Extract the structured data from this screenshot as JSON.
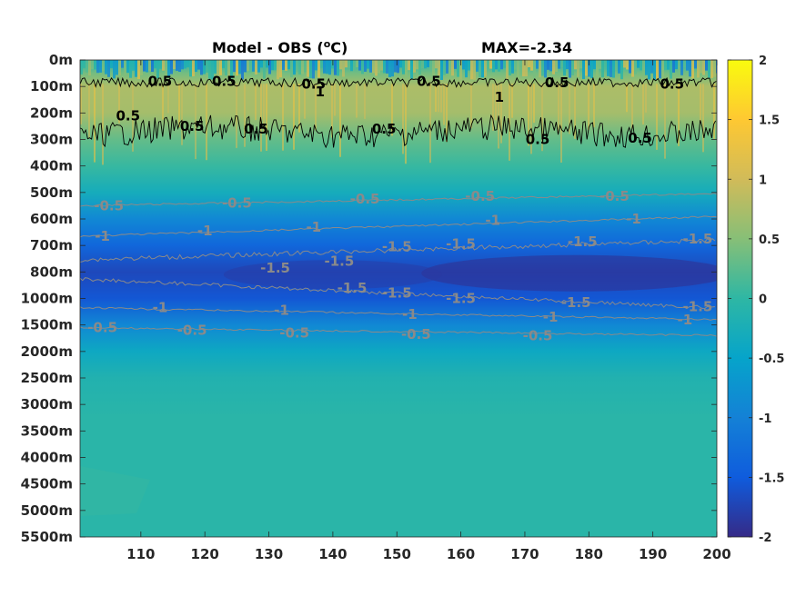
{
  "chart_data": {
    "type": "heatmap",
    "title": "Model - OBS (",
    "title_unit_sup": "o",
    "title_unit_suffix": "C)",
    "max_label": "MAX=-2.34",
    "x_ticks": [
      110,
      120,
      130,
      140,
      150,
      160,
      170,
      180,
      190,
      200
    ],
    "x_range": [
      100.5,
      200
    ],
    "depth_levels": [
      "0m",
      "100m",
      "200m",
      "300m",
      "400m",
      "500m",
      "600m",
      "700m",
      "800m",
      "1000m",
      "1500m",
      "2000m",
      "2500m",
      "3000m",
      "3500m",
      "4000m",
      "4500m",
      "5000m",
      "5500m"
    ],
    "colorbar": {
      "ticks": [
        2,
        1.5,
        1,
        0.5,
        0,
        -0.5,
        -1,
        -1.5,
        -2
      ],
      "range": [
        -2,
        2
      ],
      "colormap": "parula",
      "colors": [
        "#352a87",
        "#0f5cdd",
        "#1481d6",
        "#06a4ca",
        "#2eb7a4",
        "#87bf77",
        "#d1bb59",
        "#fec832",
        "#f9fb0e"
      ]
    },
    "depth_profile_by_level_index": [
      {
        "level": 0.0,
        "value": -0.2
      },
      {
        "level": 0.5,
        "value": 0.4
      },
      {
        "level": 1.0,
        "value": 0.75
      },
      {
        "level": 2.0,
        "value": 0.7
      },
      {
        "level": 3.0,
        "value": 0.3
      },
      {
        "level": 4.0,
        "value": 0.05
      },
      {
        "level": 5.0,
        "value": -0.3
      },
      {
        "level": 6.0,
        "value": -0.9
      },
      {
        "level": 7.0,
        "value": -1.35
      },
      {
        "level": 8.0,
        "value": -1.7
      },
      {
        "level": 9.0,
        "value": -1.55
      },
      {
        "level": 10.0,
        "value": -0.9
      },
      {
        "level": 11.0,
        "value": -0.4
      },
      {
        "level": 12.0,
        "value": -0.15
      },
      {
        "level": 13.5,
        "value": -0.05
      },
      {
        "level": 18.0,
        "value": -0.05
      }
    ],
    "contour_labels": [
      {
        "text": "0.5",
        "x": 113,
        "level": 0.8,
        "color": "black"
      },
      {
        "text": "0.5",
        "x": 123,
        "level": 0.8,
        "color": "black"
      },
      {
        "text": "0.5",
        "x": 137,
        "level": 0.9,
        "color": "black"
      },
      {
        "text": "0.5",
        "x": 155,
        "level": 0.8,
        "color": "black"
      },
      {
        "text": "0.5",
        "x": 175,
        "level": 0.85,
        "color": "black"
      },
      {
        "text": "0.5",
        "x": 193,
        "level": 0.9,
        "color": "black"
      },
      {
        "text": "1",
        "x": 138,
        "level": 1.2,
        "color": "black"
      },
      {
        "text": "1",
        "x": 166,
        "level": 1.4,
        "color": "black"
      },
      {
        "text": "0.5",
        "x": 108,
        "level": 2.1,
        "color": "black"
      },
      {
        "text": "0.5",
        "x": 118,
        "level": 2.5,
        "color": "black"
      },
      {
        "text": "0.5",
        "x": 128,
        "level": 2.6,
        "color": "black"
      },
      {
        "text": "0.5",
        "x": 148,
        "level": 2.6,
        "color": "black"
      },
      {
        "text": "0.5",
        "x": 172,
        "level": 3.0,
        "color": "black"
      },
      {
        "text": "0.5",
        "x": 188,
        "level": 2.95,
        "color": "black"
      },
      {
        "text": "-0.5",
        "x": 105,
        "level": 5.5,
        "color": "gray"
      },
      {
        "text": "-0.5",
        "x": 125,
        "level": 5.4,
        "color": "gray"
      },
      {
        "text": "-0.5",
        "x": 145,
        "level": 5.25,
        "color": "gray"
      },
      {
        "text": "-0.5",
        "x": 163,
        "level": 5.15,
        "color": "gray"
      },
      {
        "text": "-0.5",
        "x": 184,
        "level": 5.15,
        "color": "gray"
      },
      {
        "text": "-1",
        "x": 104,
        "level": 6.65,
        "color": "gray"
      },
      {
        "text": "-1",
        "x": 120,
        "level": 6.45,
        "color": "gray"
      },
      {
        "text": "-1",
        "x": 137,
        "level": 6.3,
        "color": "gray"
      },
      {
        "text": "-1",
        "x": 165,
        "level": 6.05,
        "color": "gray"
      },
      {
        "text": "-1",
        "x": 187,
        "level": 6.0,
        "color": "gray"
      },
      {
        "text": "-1.5",
        "x": 131,
        "level": 7.85,
        "color": "gray"
      },
      {
        "text": "-1.5",
        "x": 141,
        "level": 7.6,
        "color": "gray"
      },
      {
        "text": "-1.5",
        "x": 150,
        "level": 7.05,
        "color": "gray"
      },
      {
        "text": "-1.5",
        "x": 160,
        "level": 6.95,
        "color": "gray"
      },
      {
        "text": "-1.5",
        "x": 179,
        "level": 6.85,
        "color": "gray"
      },
      {
        "text": "-1.5",
        "x": 197,
        "level": 6.75,
        "color": "gray"
      },
      {
        "text": "-1.5",
        "x": 143,
        "level": 8.6,
        "color": "gray"
      },
      {
        "text": "-1.5",
        "x": 150,
        "level": 8.8,
        "color": "gray"
      },
      {
        "text": "-1.5",
        "x": 160,
        "level": 9.0,
        "color": "gray"
      },
      {
        "text": "-1.5",
        "x": 178,
        "level": 9.15,
        "color": "gray"
      },
      {
        "text": "-1.5",
        "x": 197,
        "level": 9.3,
        "color": "gray"
      },
      {
        "text": "-1",
        "x": 113,
        "level": 9.35,
        "color": "gray"
      },
      {
        "text": "-1",
        "x": 132,
        "level": 9.45,
        "color": "gray"
      },
      {
        "text": "-1",
        "x": 152,
        "level": 9.6,
        "color": "gray"
      },
      {
        "text": "-1",
        "x": 174,
        "level": 9.7,
        "color": "gray"
      },
      {
        "text": "-1",
        "x": 195,
        "level": 9.8,
        "color": "gray"
      },
      {
        "text": "-0.5",
        "x": 104,
        "level": 10.1,
        "color": "gray"
      },
      {
        "text": "-0.5",
        "x": 118,
        "level": 10.2,
        "color": "gray"
      },
      {
        "text": "-0.5",
        "x": 134,
        "level": 10.3,
        "color": "gray"
      },
      {
        "text": "-0.5",
        "x": 153,
        "level": 10.35,
        "color": "gray"
      },
      {
        "text": "-0.5",
        "x": 172,
        "level": 10.4,
        "color": "gray"
      }
    ]
  }
}
